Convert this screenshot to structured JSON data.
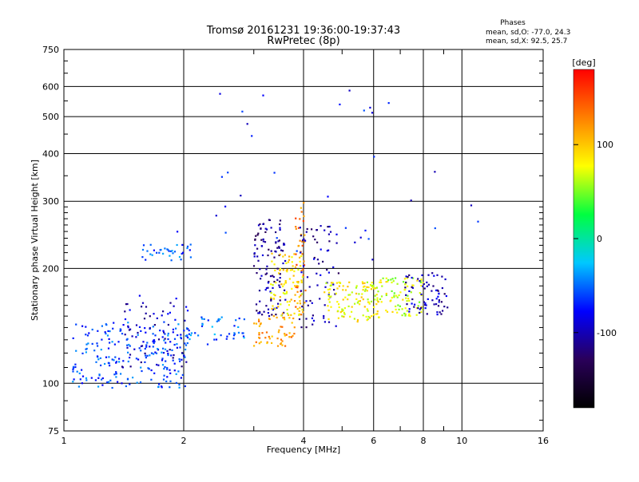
{
  "header": {
    "title_line1": "Tromsø 20161231 19:36:00-19:37:43",
    "title_line2": "RwPretec (8p)"
  },
  "stats": {
    "heading": "Phases",
    "line_o": "mean, sd,O: -77.0, 24.3",
    "line_x": "mean, sd,X: 92.5, 25.7"
  },
  "colorbar": {
    "unit_label": "[deg]",
    "tick_labels": [
      "100",
      "0",
      "-100"
    ],
    "tick_values": [
      100,
      0,
      -100
    ],
    "range": [
      -180,
      180
    ],
    "colormap": [
      "#000000",
      "#2a005a",
      "#0000ff",
      "#00c8ff",
      "#00ff40",
      "#ffff00",
      "#ff8000",
      "#ff0000"
    ]
  },
  "chart_data": {
    "type": "scatter",
    "xlabel": "Frequency [MHz]",
    "ylabel": "Stationary phase Virtual Height [km]",
    "xscale": "log",
    "yscale": "log",
    "xlim": [
      1,
      16
    ],
    "ylim": [
      75,
      750
    ],
    "xticks": [
      1,
      2,
      4,
      6,
      8,
      10,
      16
    ],
    "xtick_labels": [
      "1",
      "2",
      "4",
      "6",
      "8",
      "10",
      "16"
    ],
    "yticks": [
      75,
      100,
      200,
      300,
      400,
      500,
      600,
      750
    ],
    "ytick_labels": [
      "75",
      "100",
      "200",
      "300",
      "400",
      "500",
      "600",
      "750"
    ],
    "grid": true,
    "legend": "none",
    "clusters": [
      {
        "name": "low-band cyan trace",
        "x_range": [
          1.05,
          2.05
        ],
        "y_range": [
          97,
          145
        ],
        "phase": -60,
        "count": 230
      },
      {
        "name": "low-band blue trace",
        "x_range": [
          1.4,
          2.1
        ],
        "y_range": [
          110,
          170
        ],
        "phase": -95,
        "count": 70
      },
      {
        "name": "upper cyan track",
        "x_range": [
          1.55,
          2.1
        ],
        "y_range": [
          210,
          232
        ],
        "phase": -55,
        "count": 35
      },
      {
        "name": "cyan band 2-3 MHz",
        "x_range": [
          2.0,
          2.9
        ],
        "y_range": [
          125,
          150
        ],
        "phase": -50,
        "count": 45
      },
      {
        "name": "dark blue column",
        "x_range": [
          3.0,
          3.6
        ],
        "y_range": [
          150,
          270
        ],
        "phase": -110,
        "count": 110
      },
      {
        "name": "orange rising edge",
        "x_range": [
          3.0,
          3.8
        ],
        "y_range": [
          125,
          150
        ],
        "phase": 120,
        "count": 55
      },
      {
        "name": "yellow-orange mid trace",
        "x_range": [
          3.3,
          4.0
        ],
        "y_range": [
          150,
          220
        ],
        "phase": 90,
        "count": 90
      },
      {
        "name": "orange column near 4 MHz",
        "x_range": [
          3.8,
          4.05
        ],
        "y_range": [
          150,
          300
        ],
        "phase": 130,
        "count": 45
      },
      {
        "name": "blue column 4-5 MHz",
        "x_range": [
          3.9,
          4.9
        ],
        "y_range": [
          140,
          260
        ],
        "phase": -105,
        "count": 70
      },
      {
        "name": "yellow plateau 4.5-6 MHz",
        "x_range": [
          4.5,
          6.2
        ],
        "y_range": [
          145,
          185
        ],
        "phase": 80,
        "count": 120
      },
      {
        "name": "mixed cluster 6-8 MHz",
        "x_range": [
          6.0,
          8.0
        ],
        "y_range": [
          150,
          190
        ],
        "phase": 70,
        "count": 90
      },
      {
        "name": "blue cluster 7-9 MHz",
        "x_range": [
          7.2,
          9.2
        ],
        "y_range": [
          150,
          195
        ],
        "phase": -100,
        "count": 70
      },
      {
        "name": "sparse high echoes",
        "x_range": [
          1.8,
          13
        ],
        "y_range": [
          210,
          600
        ],
        "phase": -80,
        "count": 35
      }
    ]
  }
}
